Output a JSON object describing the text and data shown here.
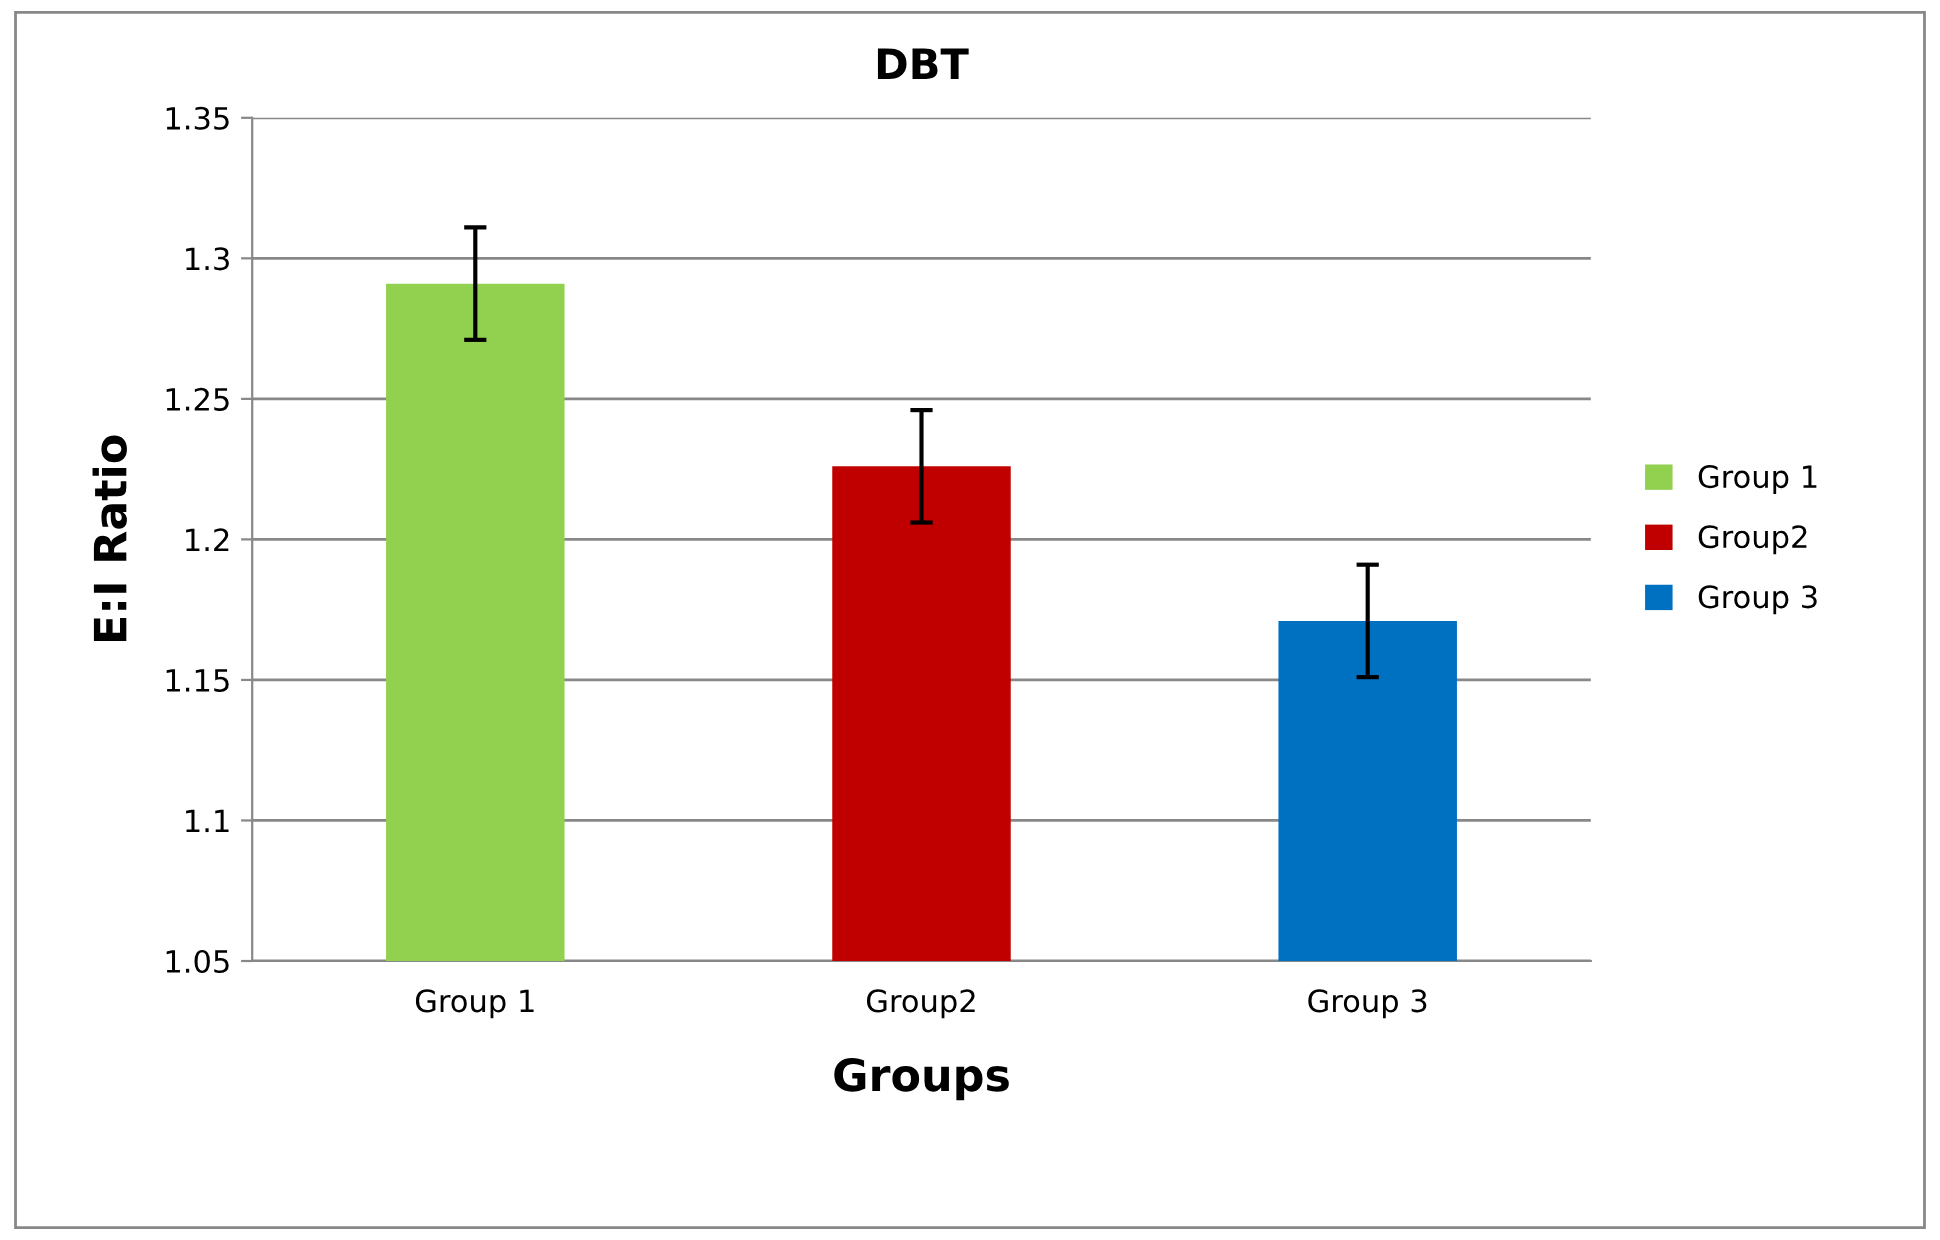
{
  "chart_data": {
    "type": "bar",
    "title": "DBT",
    "xlabel": "Groups",
    "ylabel": "E:I Ratio",
    "categories": [
      "Group 1",
      "Group2",
      "Group 3"
    ],
    "series": [
      {
        "name": "Group 1",
        "color": "#92d050",
        "values": [
          1.291,
          null,
          null
        ],
        "errors": [
          0.02,
          null,
          null
        ]
      },
      {
        "name": "Group2",
        "color": "#c00000",
        "values": [
          null,
          1.226,
          null
        ],
        "errors": [
          null,
          0.02,
          null
        ]
      },
      {
        "name": "Group 3",
        "color": "#0070c0",
        "values": [
          null,
          null,
          1.171
        ],
        "errors": [
          null,
          null,
          0.02
        ]
      }
    ],
    "ylim": [
      1.05,
      1.35
    ],
    "yticks": [
      1.05,
      {
        "value": 1.1,
        "label": "1.1"
      },
      1.15,
      {
        "value": 1.2,
        "label": "1.2"
      },
      1.25,
      {
        "value": 1.3,
        "label": "1.3"
      },
      1.35
    ],
    "grid": "y",
    "legend": "right"
  }
}
